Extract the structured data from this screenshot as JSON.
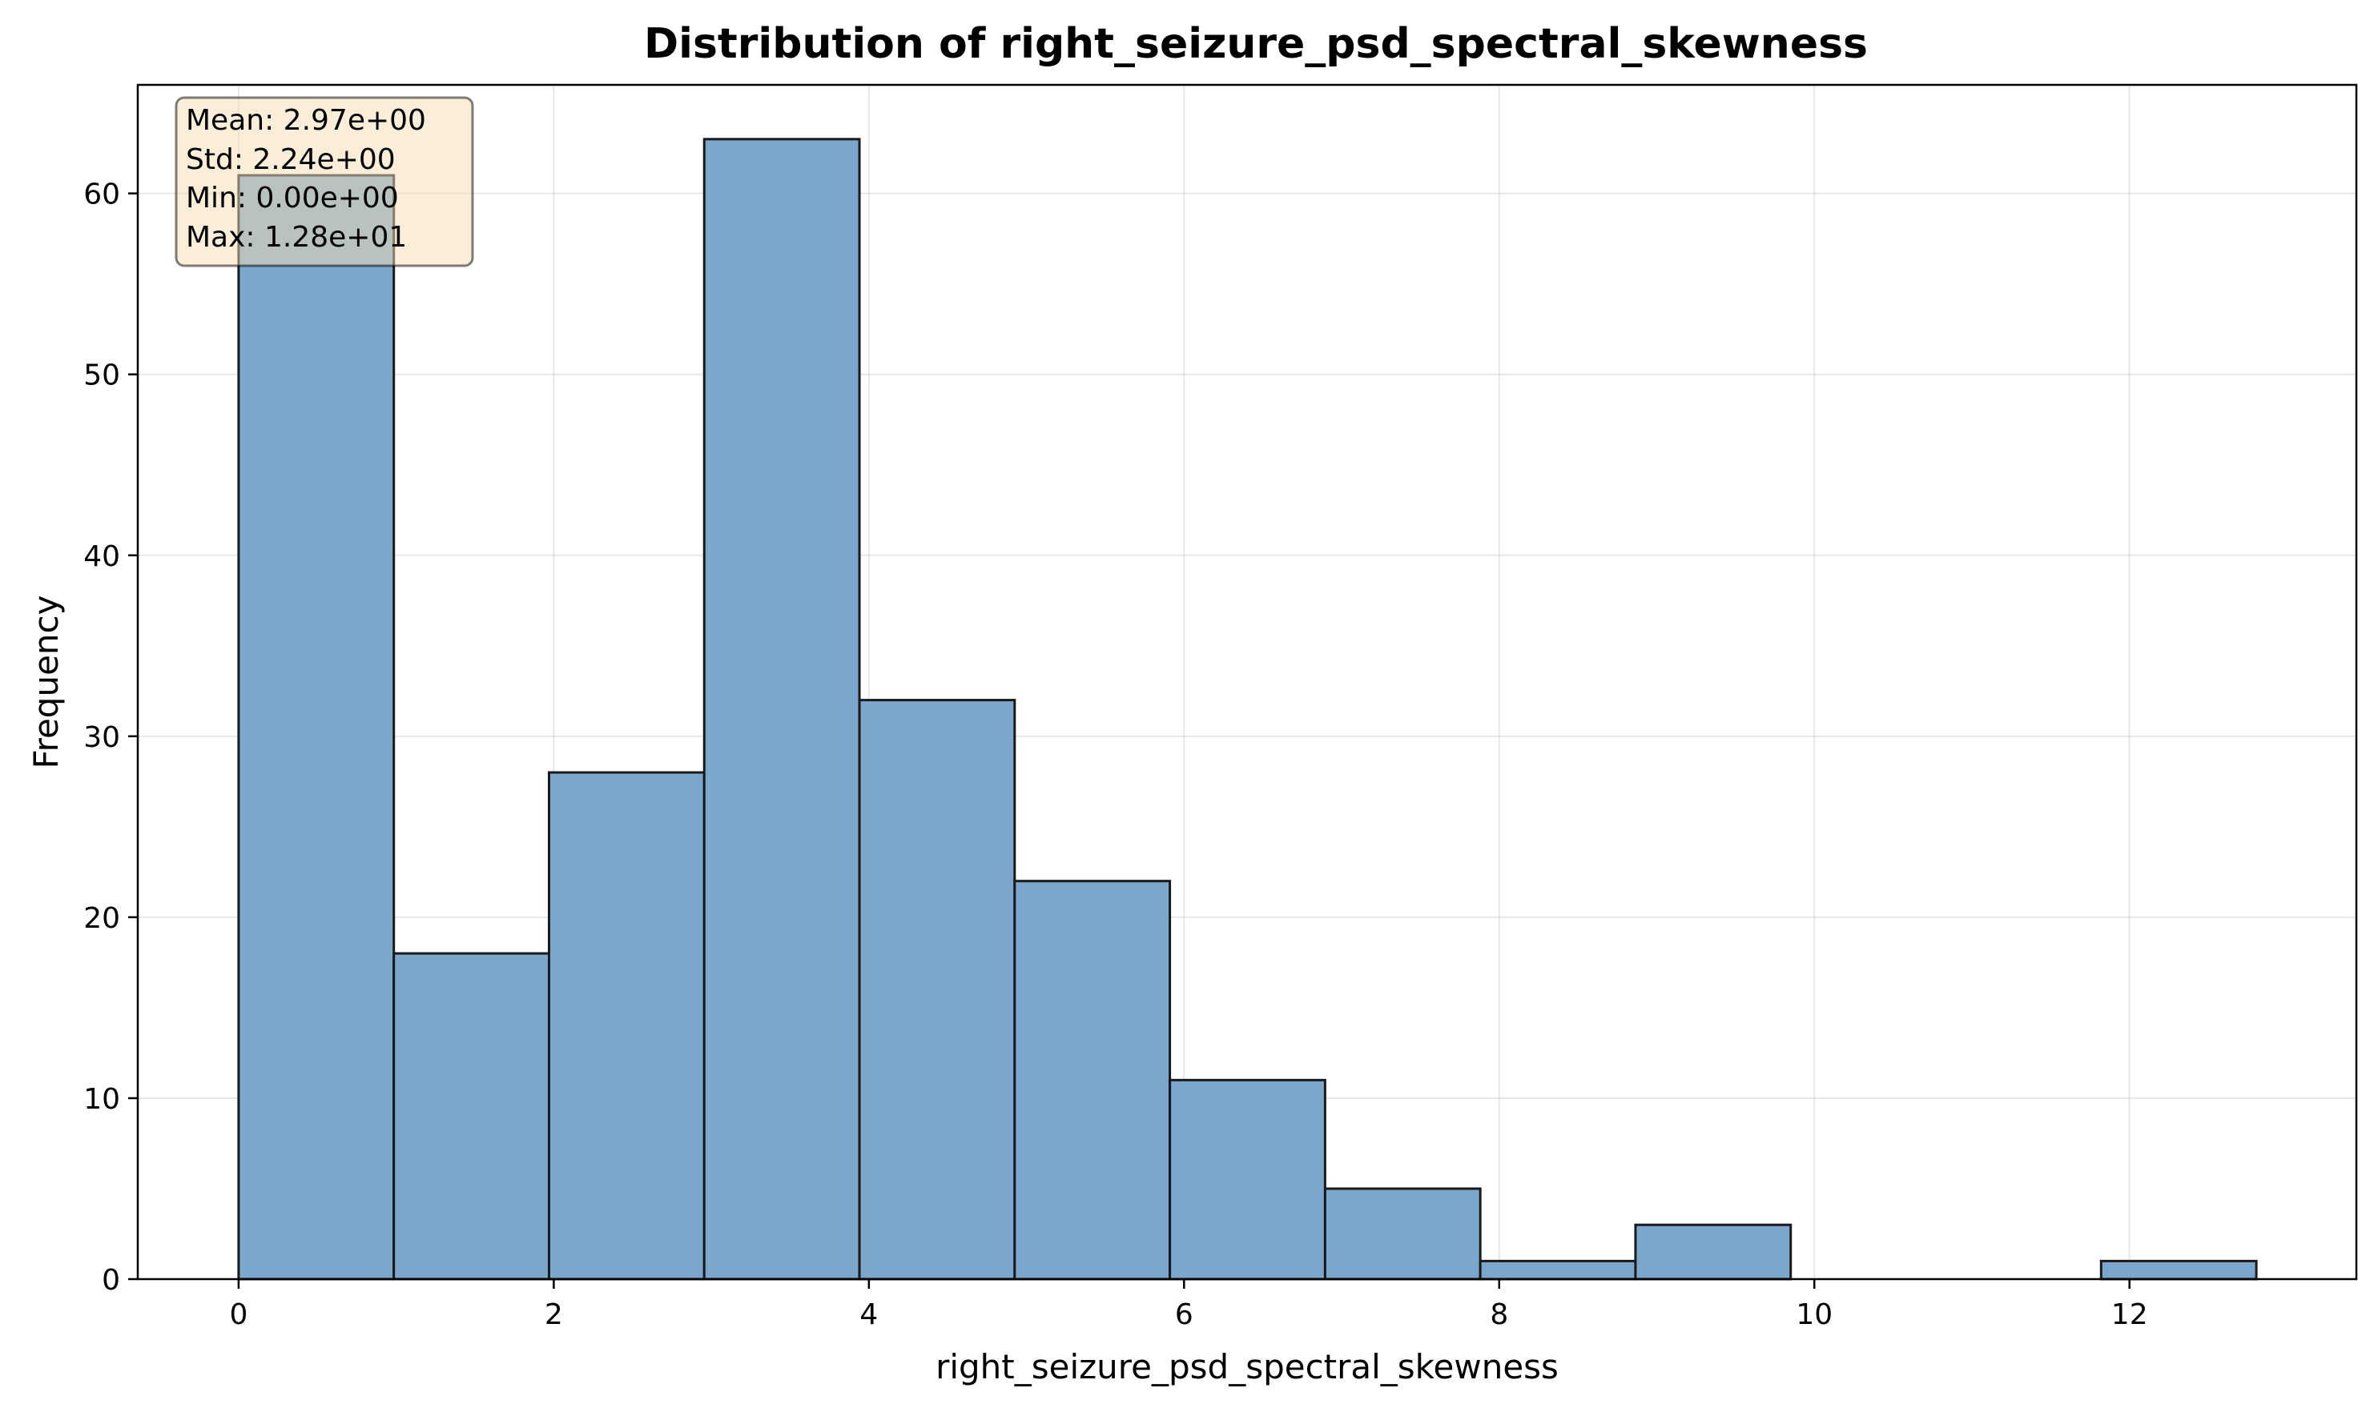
{
  "chart_data": {
    "type": "bar",
    "title": "Distribution of right_seizure_psd_spectral_skewness",
    "xlabel": "right_seizure_psd_spectral_skewness",
    "ylabel": "Frequency",
    "xlim": [
      -0.64,
      13.44
    ],
    "ylim": [
      0,
      66
    ],
    "xticks": [
      0,
      2,
      4,
      6,
      8,
      10,
      12
    ],
    "yticks": [
      0,
      10,
      20,
      30,
      40,
      50,
      60
    ],
    "grid": true,
    "bin_edges": [
      0.0,
      0.985,
      1.97,
      2.955,
      3.94,
      4.925,
      5.91,
      6.895,
      7.88,
      8.865,
      9.85,
      10.835,
      11.82,
      12.805
    ],
    "values": [
      61,
      18,
      28,
      63,
      32,
      22,
      11,
      5,
      1,
      3,
      0,
      0,
      1
    ],
    "bar_color": "#7ba7cc",
    "edge_color": "#1a1a1a",
    "stats_box": {
      "lines": [
        "Mean: 2.97e+00",
        "Std: 2.24e+00",
        "Min: 0.00e+00",
        "Max: 1.28e+01"
      ],
      "position": "top-left",
      "background": "#f5deb3"
    }
  }
}
